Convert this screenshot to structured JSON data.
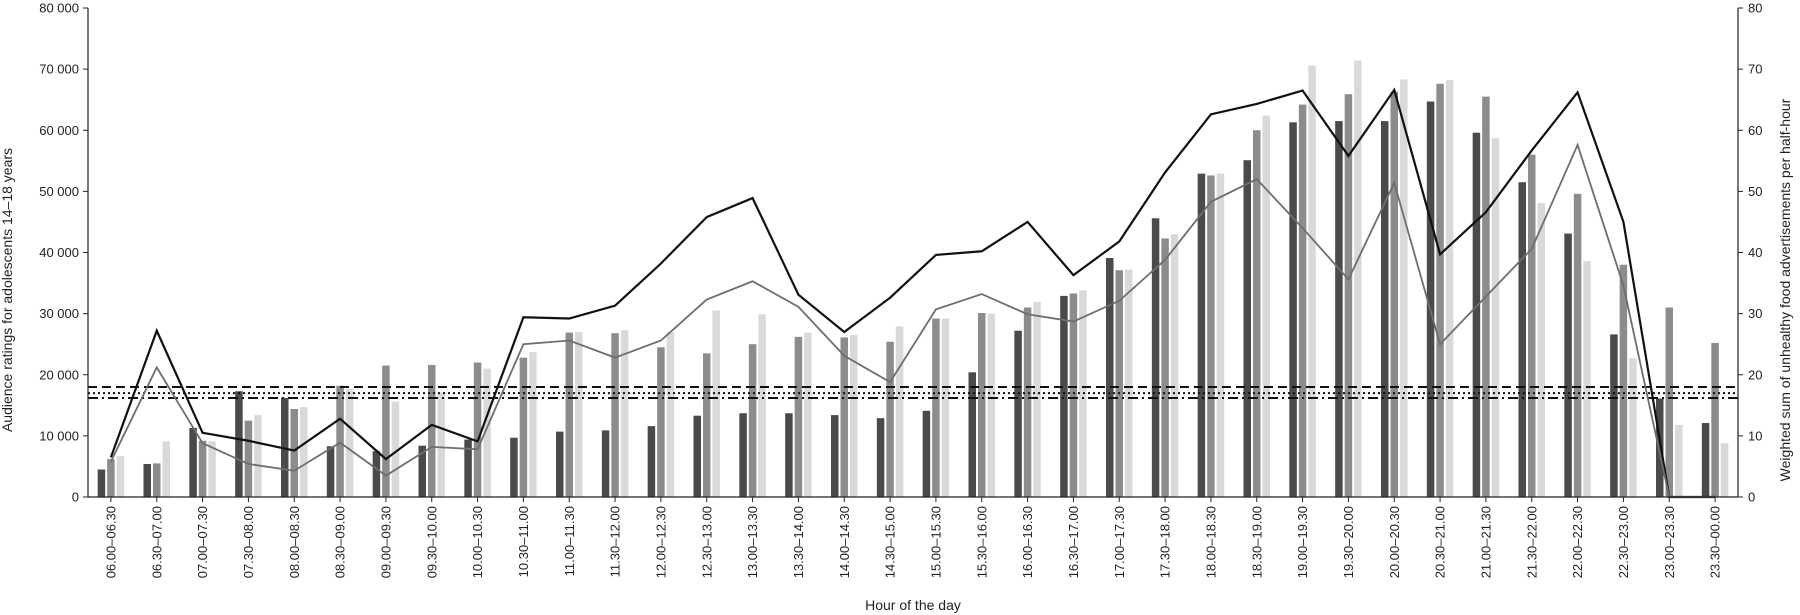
{
  "chart_data": {
    "type": "bar",
    "xlabel": "Hour of the day",
    "ylabel": "Audience ratings for adolescents 14–18 years",
    "y2label": "Weighted sum of unhealthy food advertisements per half-hour",
    "ylim": [
      0,
      80000
    ],
    "y2lim": [
      0,
      80
    ],
    "yticks": [
      "0",
      "10 000",
      "20 000",
      "30 000",
      "40 000",
      "50 000",
      "60 000",
      "70 000",
      "80 000"
    ],
    "y2ticks": [
      "0",
      "10",
      "20",
      "30",
      "40",
      "50",
      "60",
      "70",
      "80"
    ],
    "grid": false,
    "legend": "none",
    "categories": [
      "06.00–06.30",
      "06.30–07.00",
      "07.00–07.30",
      "07.30–08.00",
      "08.00–08.30",
      "08.30–09.00",
      "09.00–09.30",
      "09.30–10.00",
      "10.00–10.30",
      "10.30–11.00",
      "11.00–11.30",
      "11.30–12.00",
      "12.00–12.30",
      "12.30–13.00",
      "13.00–13.30",
      "13.30–14.00",
      "14.00–14.30",
      "14.30–15.00",
      "15.00–15.30",
      "15.30–16.00",
      "16.00–16.30",
      "16.30–17.00",
      "17.00–17.30",
      "17.30–18.00",
      "18.00–18.30",
      "18.30–19.00",
      "19.00–19.30",
      "19.30–20.00",
      "20.00–20.30",
      "20.30–21.00",
      "21.00–21.30",
      "21.30–22.00",
      "22.00–22.30",
      "22.30–23.00",
      "23.00–23.30",
      "23.30–00.00"
    ],
    "bar_series": [
      {
        "color": "#4a4a4a",
        "values": [
          4500,
          5400,
          11300,
          17300,
          16200,
          8300,
          7500,
          8400,
          9400,
          9700,
          10700,
          10900,
          11600,
          13300,
          13700,
          13700,
          13400,
          12900,
          14100,
          20400,
          27200,
          32900,
          39100,
          45600,
          52900,
          55100,
          61300,
          61500,
          61500,
          64700,
          59600,
          51500,
          43100,
          26600,
          16100,
          12100
        ]
      },
      {
        "color": "#8c8c8c",
        "values": [
          6200,
          5500,
          9200,
          12500,
          14400,
          18200,
          21500,
          21600,
          22000,
          22800,
          26900,
          26800,
          24500,
          23500,
          25000,
          26200,
          26100,
          25400,
          29200,
          30100,
          31000,
          33300,
          37100,
          42300,
          52600,
          60000,
          64200,
          65900,
          66300,
          67600,
          65500,
          56000,
          49600,
          38000,
          31000,
          25200
        ]
      },
      {
        "color": "#d9d9d9",
        "values": [
          6700,
          9100,
          9100,
          13400,
          14700,
          17700,
          15600,
          17100,
          21000,
          23700,
          27000,
          27300,
          27000,
          30500,
          29900,
          26900,
          26500,
          27900,
          29200,
          30000,
          31900,
          33800,
          37200,
          43000,
          52900,
          62400,
          70600,
          71400,
          68300,
          68200,
          58700,
          48100,
          38600,
          22700,
          11800,
          8800
        ]
      }
    ],
    "line_series": [
      {
        "color": "#111111",
        "width": 2.2,
        "values": [
          6.5,
          27.2,
          10.5,
          9.2,
          7.6,
          12.8,
          6.2,
          11.8,
          9.1,
          29.4,
          29.2,
          31.3,
          38.2,
          45.8,
          48.9,
          33.1,
          27.0,
          32.6,
          39.6,
          40.2,
          45.0,
          36.3,
          41.8,
          53.1,
          62.6,
          64.3,
          66.5,
          55.8,
          66.6,
          39.7,
          46.6,
          56.7,
          66.2,
          45.0,
          0,
          0
        ]
      },
      {
        "color": "#6e6e6e",
        "width": 1.8,
        "values": [
          5.8,
          21.2,
          8.8,
          5.4,
          4.3,
          8.9,
          3.5,
          8.2,
          7.8,
          25.0,
          25.6,
          22.8,
          25.6,
          32.3,
          35.3,
          31.1,
          23.1,
          18.8,
          30.7,
          33.2,
          29.9,
          28.7,
          32.1,
          38.8,
          48.3,
          52.0,
          44.0,
          35.6,
          51.4,
          25.0,
          32.8,
          40.6,
          57.6,
          34.6,
          0,
          0
        ]
      }
    ],
    "reference_lines": [
      {
        "value": 18,
        "style": "dashed"
      },
      {
        "value": 17,
        "style": "dotted"
      },
      {
        "value": 16.2,
        "style": "dash-dot"
      }
    ]
  }
}
